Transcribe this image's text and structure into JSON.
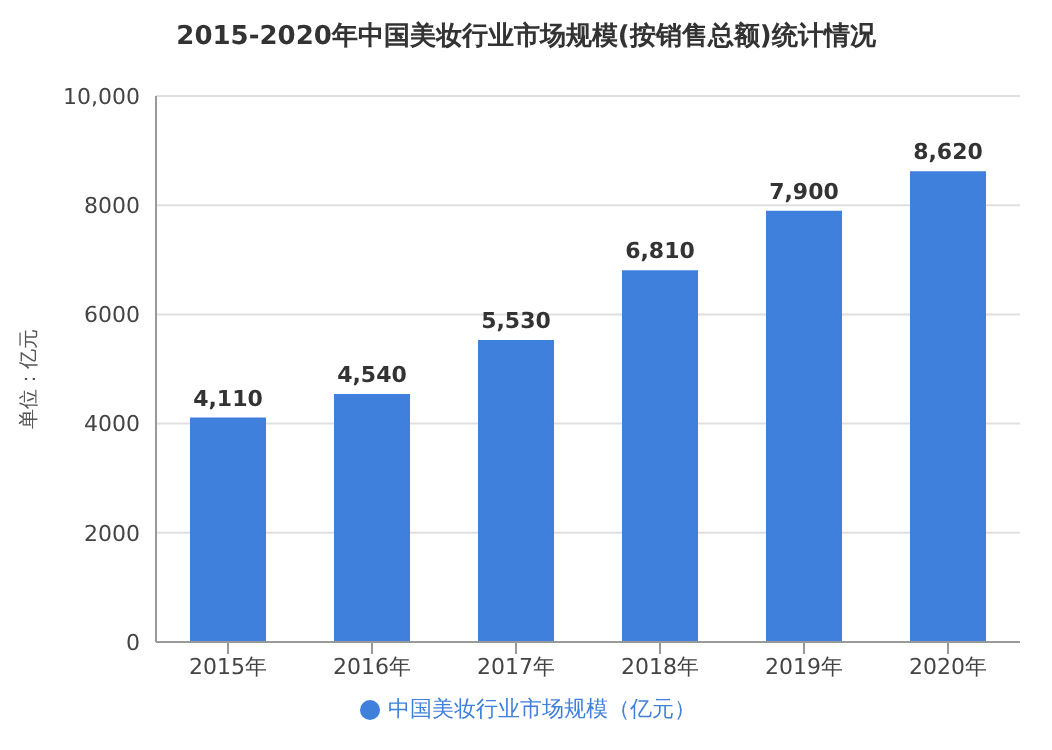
{
  "chart_data": {
    "type": "bar",
    "title": "2015-2020年中国美妆行业市场规模(按销售总额)统计情况",
    "ylabel": "单位：亿元",
    "categories": [
      "2015年",
      "2016年",
      "2017年",
      "2018年",
      "2019年",
      "2020年"
    ],
    "series": [
      {
        "name": "中国美妆行业市场规模（亿元）",
        "color": "#3f80dc",
        "values": [
          4110,
          4540,
          5530,
          6810,
          7900,
          8620
        ]
      }
    ],
    "value_labels": [
      "4,110",
      "4,540",
      "5,530",
      "6,810",
      "7,900",
      "8,620"
    ],
    "ylim": [
      0,
      10000
    ],
    "yticks": [
      0,
      2000,
      4000,
      6000,
      8000,
      {
        "value": 10000,
        "label": "10,000"
      }
    ],
    "grid": "y",
    "legend": "bottom"
  }
}
